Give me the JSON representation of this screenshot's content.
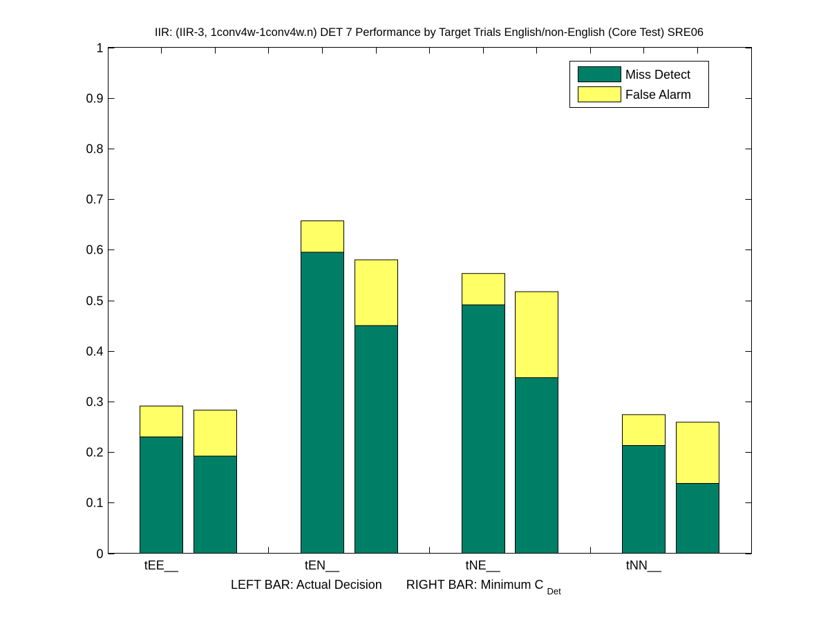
{
  "chart_data": {
    "type": "bar",
    "stacked": true,
    "title": "IIR: (IIR-3, 1conv4w-1conv4w.n) DET 7 Performance by Target Trials English/non-English (Core Test) SRE06",
    "xlabel": {
      "left": "LEFT BAR: Actual Decision",
      "right": "RIGHT BAR: Minimum C",
      "right_subscript": "Det"
    },
    "ylabel": "",
    "ylim": [
      0,
      1
    ],
    "yticks": [
      0,
      0.1,
      0.2,
      0.3,
      0.4,
      0.5,
      0.6,
      0.7,
      0.8,
      0.9,
      1
    ],
    "ytick_labels": [
      "0",
      "0.1",
      "0.2",
      "0.3",
      "0.4",
      "0.5",
      "0.6",
      "0.7",
      "0.8",
      "0.9",
      "1"
    ],
    "categories": [
      "tEE__",
      "tEN__",
      "tNE__",
      "tNN__"
    ],
    "bars_per_group": [
      "Actual Decision",
      "Minimum C_Det"
    ],
    "series": [
      {
        "name": "Miss Detect",
        "color": "#007f67",
        "values": {
          "actual_decision": [
            0.23,
            0.595,
            0.491,
            0.213
          ],
          "minimum_cdet": [
            0.192,
            0.45,
            0.347,
            0.138
          ]
        }
      },
      {
        "name": "False Alarm",
        "color": "#ffff66",
        "values": {
          "actual_decision": [
            0.061,
            0.062,
            0.062,
            0.061
          ],
          "minimum_cdet": [
            0.091,
            0.13,
            0.17,
            0.121
          ]
        }
      }
    ],
    "totals": {
      "actual_decision": [
        0.291,
        0.657,
        0.553,
        0.274
      ],
      "minimum_cdet": [
        0.283,
        0.58,
        0.517,
        0.259
      ]
    },
    "legend": {
      "entries": [
        "Miss Detect",
        "False Alarm"
      ],
      "placement": "top-right"
    },
    "grid": false
  }
}
